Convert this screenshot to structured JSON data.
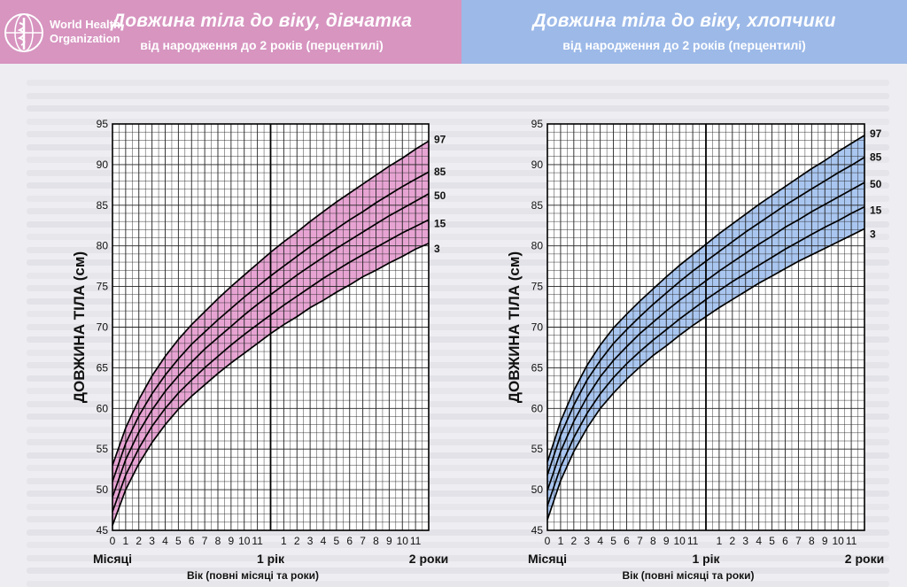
{
  "header": {
    "org_name_line1": "World Health",
    "org_name_line2": "Organization",
    "girls_title": "Довжина тіла до віку, дівчатка",
    "girls_subtitle": "від народження до 2 років (перцентилі)",
    "boys_title": "Довжина тіла  до віку, хлопчики",
    "boys_subtitle": "від народження до 2 років (перцентилі)"
  },
  "chart_data": [
    {
      "type": "line",
      "name": "girls",
      "ylabel": "ДОВЖИНА ТІЛА (см)",
      "xlabel": "Вік (повні місяці та роки)",
      "x_group_labels": [
        "Місяці",
        "1 рік",
        "2 роки"
      ],
      "x_ticks": [
        "0",
        "1",
        "2",
        "3",
        "4",
        "5",
        "6",
        "7",
        "8",
        "9",
        "10",
        "11",
        "1",
        "2",
        "3",
        "4",
        "5",
        "6",
        "7",
        "8",
        "9",
        "10",
        "11"
      ],
      "y_ticks": [
        45,
        50,
        55,
        60,
        65,
        70,
        75,
        80,
        85,
        90,
        95
      ],
      "xlim": [
        0,
        24
      ],
      "ylim": [
        45,
        95
      ],
      "x": [
        0,
        1,
        2,
        3,
        4,
        5,
        6,
        7,
        8,
        9,
        10,
        11,
        12,
        13,
        14,
        15,
        16,
        17,
        18,
        19,
        20,
        21,
        22,
        23,
        24
      ],
      "band_color": "#e7a4d3",
      "series": [
        {
          "name": "97",
          "values": [
            53.0,
            57.6,
            61.1,
            64.0,
            66.4,
            68.5,
            70.3,
            71.9,
            73.5,
            75.0,
            76.4,
            77.8,
            79.2,
            80.5,
            81.7,
            83.0,
            84.2,
            85.4,
            86.5,
            87.6,
            88.7,
            89.8,
            90.8,
            91.9,
            92.9
          ]
        },
        {
          "name": "85",
          "values": [
            51.0,
            55.7,
            59.1,
            61.8,
            64.1,
            66.1,
            67.9,
            69.4,
            70.9,
            72.3,
            73.7,
            75.0,
            76.3,
            77.5,
            78.7,
            79.9,
            81.0,
            82.1,
            83.2,
            84.2,
            85.3,
            86.3,
            87.3,
            88.2,
            89.1
          ]
        },
        {
          "name": "50",
          "values": [
            49.1,
            53.7,
            57.1,
            59.8,
            62.1,
            64.0,
            65.7,
            67.3,
            68.7,
            70.1,
            71.5,
            72.8,
            74.0,
            75.2,
            76.4,
            77.5,
            78.6,
            79.7,
            80.7,
            81.7,
            82.7,
            83.7,
            84.6,
            85.5,
            86.4
          ]
        },
        {
          "name": "15",
          "values": [
            47.3,
            51.8,
            55.1,
            57.8,
            60.0,
            61.9,
            63.5,
            65.0,
            66.4,
            67.8,
            69.1,
            70.3,
            71.5,
            72.7,
            73.8,
            74.9,
            76.0,
            77.0,
            78.0,
            78.9,
            79.8,
            80.7,
            81.6,
            82.4,
            83.2
          ]
        },
        {
          "name": "3",
          "values": [
            45.6,
            50.0,
            53.2,
            55.8,
            58.0,
            59.9,
            61.5,
            62.9,
            64.3,
            65.6,
            66.8,
            68.0,
            69.2,
            70.3,
            71.3,
            72.4,
            73.3,
            74.3,
            75.2,
            76.2,
            77.0,
            77.9,
            78.7,
            79.6,
            80.3
          ]
        }
      ]
    },
    {
      "type": "line",
      "name": "boys",
      "ylabel": "ДОВЖИНА ТІЛА (см)",
      "xlabel": "Вік (повні місяці та роки)",
      "x_group_labels": [
        "Місяці",
        "1 рік",
        "2 роки"
      ],
      "x_ticks": [
        "0",
        "1",
        "2",
        "3",
        "4",
        "5",
        "6",
        "7",
        "8",
        "9",
        "10",
        "11",
        "1",
        "2",
        "3",
        "4",
        "5",
        "6",
        "7",
        "8",
        "9",
        "10",
        "11"
      ],
      "y_ticks": [
        45,
        50,
        55,
        60,
        65,
        70,
        75,
        80,
        85,
        90,
        95
      ],
      "xlim": [
        0,
        24
      ],
      "ylim": [
        45,
        95
      ],
      "x": [
        0,
        1,
        2,
        3,
        4,
        5,
        6,
        7,
        8,
        9,
        10,
        11,
        12,
        13,
        14,
        15,
        16,
        17,
        18,
        19,
        20,
        21,
        22,
        23,
        24
      ],
      "band_color": "#a9c6f0",
      "series": [
        {
          "name": "97",
          "values": [
            53.4,
            58.4,
            62.2,
            65.3,
            67.8,
            69.9,
            71.6,
            73.2,
            74.7,
            76.2,
            77.6,
            78.9,
            80.2,
            81.5,
            82.7,
            83.9,
            85.1,
            86.2,
            87.3,
            88.4,
            89.5,
            90.5,
            91.6,
            92.6,
            93.6
          ]
        },
        {
          "name": "85",
          "values": [
            51.8,
            56.7,
            60.4,
            63.5,
            65.9,
            68.0,
            69.7,
            71.3,
            72.8,
            74.2,
            75.6,
            76.9,
            78.1,
            79.3,
            80.5,
            81.7,
            82.8,
            83.9,
            85.0,
            86.0,
            87.0,
            88.0,
            89.0,
            89.9,
            90.9
          ]
        },
        {
          "name": "50",
          "values": [
            49.9,
            54.7,
            58.4,
            61.4,
            63.9,
            65.9,
            67.6,
            69.2,
            70.6,
            72.0,
            73.3,
            74.5,
            75.7,
            76.9,
            78.0,
            79.1,
            80.2,
            81.2,
            82.3,
            83.2,
            84.2,
            85.1,
            86.0,
            86.9,
            87.8
          ]
        },
        {
          "name": "15",
          "values": [
            48.0,
            52.8,
            56.4,
            59.4,
            61.8,
            63.8,
            65.5,
            67.0,
            68.4,
            69.7,
            71.0,
            72.2,
            73.4,
            74.5,
            75.6,
            76.6,
            77.6,
            78.6,
            79.6,
            80.5,
            81.4,
            82.3,
            83.1,
            84.0,
            84.8
          ]
        },
        {
          "name": "3",
          "values": [
            46.3,
            51.1,
            54.7,
            57.6,
            60.0,
            61.9,
            63.6,
            65.1,
            66.5,
            67.7,
            69.0,
            70.2,
            71.3,
            72.4,
            73.4,
            74.4,
            75.4,
            76.3,
            77.2,
            78.1,
            78.9,
            79.7,
            80.5,
            81.3,
            82.1
          ]
        }
      ]
    }
  ]
}
